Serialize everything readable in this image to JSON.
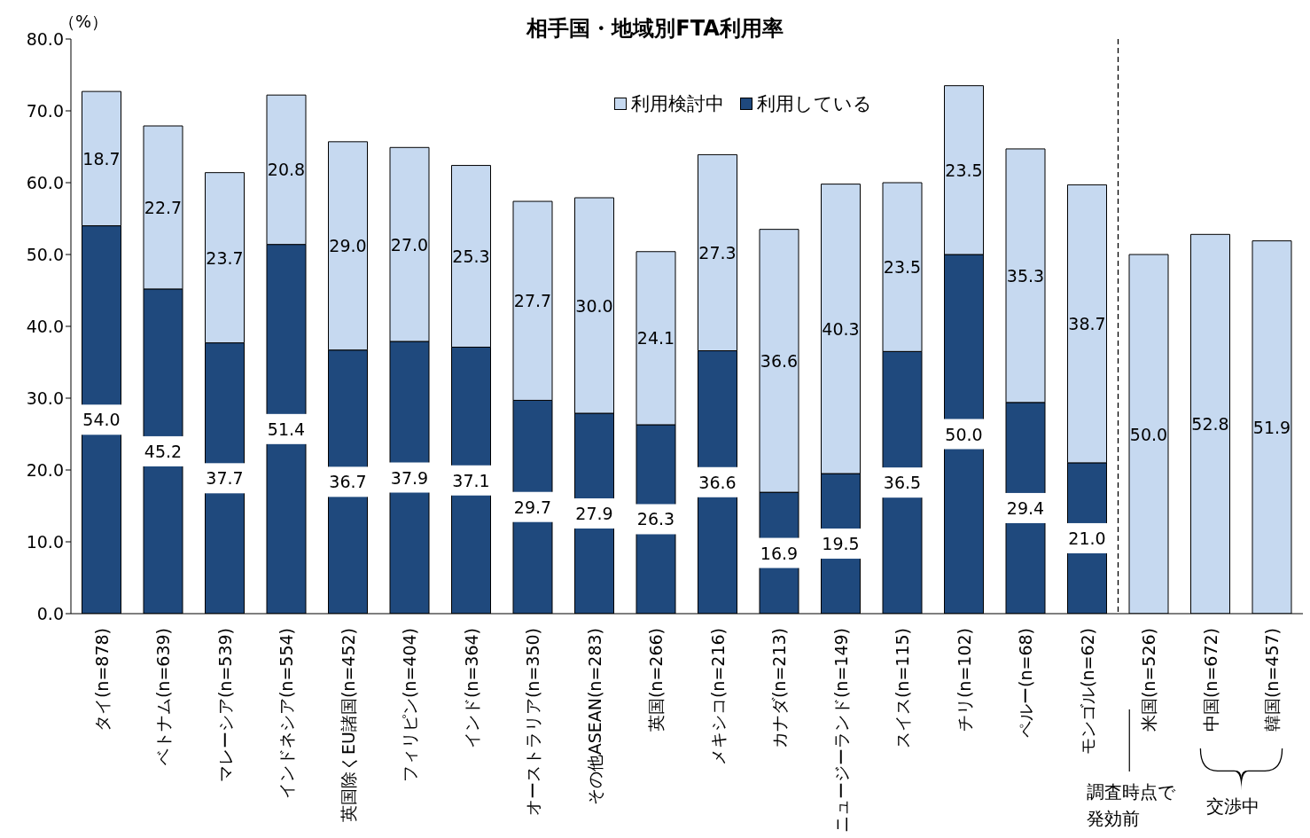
{
  "chart_data": {
    "type": "bar",
    "title": "相手国・地域別FTA利用率",
    "ylabel": "（%）",
    "categories": [
      "タイ(n=878)",
      "ベトナム(n=639)",
      "マレーシア(n=539)",
      "インドネシア(n=554)",
      "英国除くEU諸国(n=452)",
      "フィリピン(n=404)",
      "インド(n=364)",
      "オーストラリア(n=350)",
      "その他ASEAN(n=283)",
      "英国(n=266)",
      "メキシコ(n=216)",
      "カナダ(n=213)",
      "ニュージーランド(n=149)",
      "スイス(n=115)",
      "チリ(n=102)",
      "ペルー(n=68)",
      "モンゴル(n=62)",
      "米国(n=526)",
      "中国(n=672)",
      "韓国(n=457)"
    ],
    "series": [
      {
        "name": "利用している",
        "color": "#1f497d",
        "values": [
          54.0,
          45.2,
          37.7,
          51.4,
          36.7,
          37.9,
          37.1,
          29.7,
          27.9,
          26.3,
          36.6,
          16.9,
          19.5,
          36.5,
          50.0,
          29.4,
          21.0,
          null,
          null,
          null
        ],
        "value_labels": [
          "54.0",
          "45.2",
          "37.7",
          "51.4",
          "36.7",
          "37.9",
          "37.1",
          "29.7",
          "27.9",
          "26.3",
          "36.6",
          "16.9",
          "19.5",
          "36.5",
          "50.0",
          "29.4",
          "21.0",
          null,
          null,
          null
        ]
      },
      {
        "name": "利用検討中",
        "color": "#c6d9f0",
        "values": [
          18.7,
          22.7,
          23.7,
          20.8,
          29.0,
          27.0,
          25.3,
          27.7,
          30.0,
          24.1,
          27.3,
          36.6,
          40.3,
          23.5,
          23.5,
          35.3,
          38.7,
          50.0,
          52.8,
          51.9
        ],
        "value_labels": [
          "18.7",
          "22.7",
          "23.7",
          "20.8",
          "29.0",
          "27.0",
          "25.3",
          "27.7",
          "30.0",
          "24.1",
          "27.3",
          "36.6",
          "40.3",
          "23.5",
          "23.5",
          "35.3",
          "38.7",
          "50.0",
          "52.8",
          "51.9"
        ]
      }
    ],
    "stacked": true,
    "legend": "top",
    "ylim": [
      0,
      80
    ],
    "yticks": [
      {
        "value": 0,
        "label": "0.0"
      },
      {
        "value": 10,
        "label": "10.0"
      },
      {
        "value": 20,
        "label": "20.0"
      },
      {
        "value": 30,
        "label": "30.0"
      },
      {
        "value": 40,
        "label": "40.0"
      },
      {
        "value": 50,
        "label": "50.0"
      },
      {
        "value": 60,
        "label": "60.0"
      },
      {
        "value": 70,
        "label": "70.0"
      },
      {
        "value": 80,
        "label": "80.0"
      }
    ],
    "annotations": [
      "調査時点で発効前",
      "交渉中"
    ]
  }
}
